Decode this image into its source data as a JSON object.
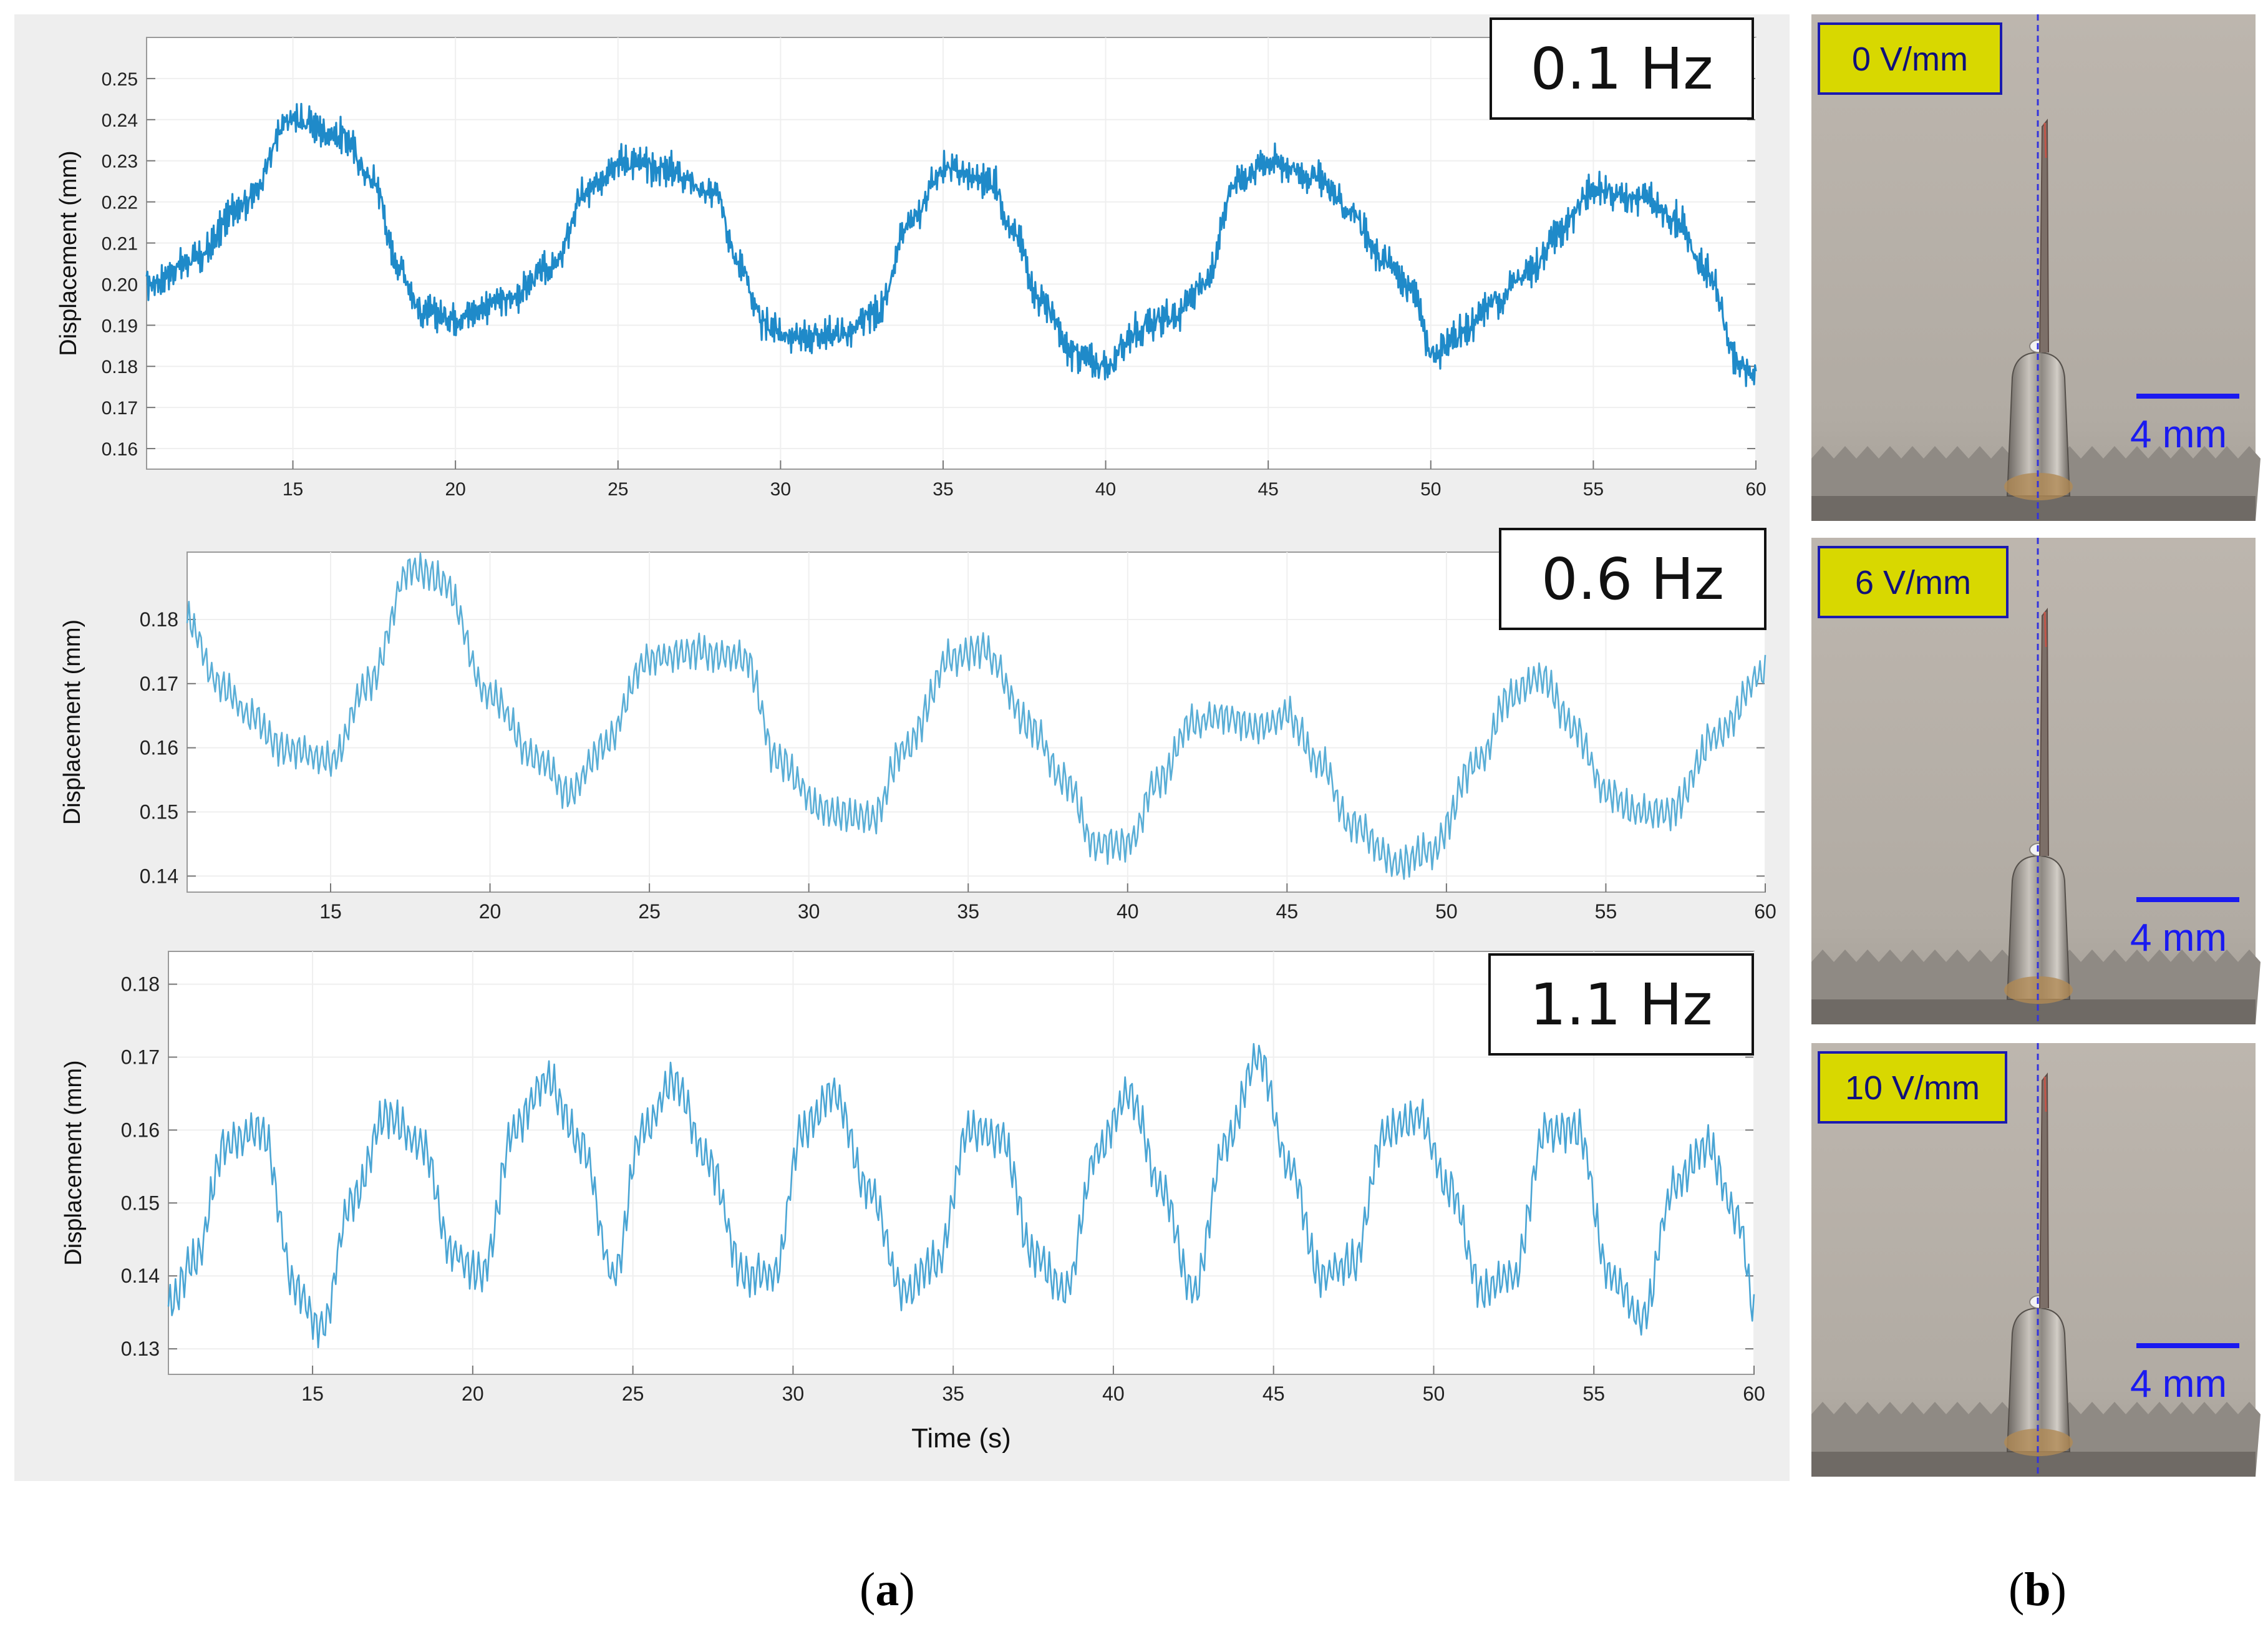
{
  "chart_data": [
    {
      "type": "line",
      "annotation": "0.1 Hz",
      "ylabel": "Displacement (mm)",
      "xlabel": "",
      "xlim": [
        10.5,
        60
      ],
      "ylim": [
        0.155,
        0.26
      ],
      "xticks": [
        15,
        20,
        25,
        30,
        35,
        40,
        45,
        50,
        55,
        60
      ],
      "yticks": [
        0.16,
        0.17,
        0.18,
        0.19,
        0.2,
        0.21,
        0.22,
        0.23,
        0.24,
        0.25
      ],
      "ytick_labels": [
        "0.16",
        "0.17",
        "0.18",
        "0.19",
        "0.20",
        "0.21",
        "0.22",
        "0.23",
        "0.24",
        "0.25"
      ],
      "grid": true,
      "series": [
        {
          "color": "#1f8ac9",
          "x": [
            10.5,
            12,
            13.5,
            15,
            16.5,
            17.5,
            18.2,
            19,
            20,
            21.5,
            23,
            24,
            25,
            26.5,
            28,
            28.7,
            29.5,
            30.5,
            32,
            33,
            34,
            35,
            36.5,
            37.2,
            38,
            39,
            40,
            41,
            42,
            43,
            44,
            45,
            46.5,
            47.5,
            48.5,
            49.5,
            50,
            51,
            52,
            53,
            54,
            55,
            56.5,
            57.5,
            58.5,
            59.5,
            60
          ],
          "y": [
            0.2,
            0.206,
            0.22,
            0.24,
            0.236,
            0.225,
            0.205,
            0.193,
            0.192,
            0.196,
            0.204,
            0.222,
            0.23,
            0.228,
            0.222,
            0.205,
            0.19,
            0.187,
            0.188,
            0.193,
            0.215,
            0.228,
            0.225,
            0.212,
            0.196,
            0.183,
            0.18,
            0.189,
            0.192,
            0.199,
            0.225,
            0.23,
            0.226,
            0.218,
            0.206,
            0.198,
            0.183,
            0.188,
            0.196,
            0.203,
            0.213,
            0.223,
            0.221,
            0.216,
            0.203,
            0.18,
            0.178
          ],
          "noise": 0.004
        }
      ]
    },
    {
      "type": "line",
      "annotation": "0.6 Hz",
      "ylabel": "Displacement (mm)",
      "xlabel": "",
      "xlim": [
        10.5,
        60
      ],
      "ylim": [
        0.1375,
        0.1905
      ],
      "xticks": [
        15,
        20,
        25,
        30,
        35,
        40,
        45,
        50,
        55,
        60
      ],
      "yticks": [
        0.14,
        0.15,
        0.16,
        0.17,
        0.18
      ],
      "ytick_labels": [
        "0.14",
        "0.15",
        "0.16",
        "0.17",
        "0.18"
      ],
      "grid": true,
      "series": [
        {
          "color": "#5aaed6",
          "x": [
            10.5,
            11.5,
            12.5,
            13.5,
            15,
            16.2,
            17.5,
            18.5,
            20,
            21.5,
            22.5,
            23.5,
            25,
            26.5,
            28,
            29,
            30.5,
            32,
            33,
            34.5,
            35.5,
            37,
            38,
            39,
            40,
            41,
            42,
            43,
            44,
            45,
            46,
            47,
            48.5,
            49.5,
            51,
            52,
            53,
            54,
            55,
            56,
            57,
            58.5,
            60
          ],
          "y": [
            0.18,
            0.17,
            0.165,
            0.16,
            0.158,
            0.17,
            0.188,
            0.186,
            0.168,
            0.158,
            0.153,
            0.16,
            0.174,
            0.175,
            0.174,
            0.158,
            0.15,
            0.149,
            0.16,
            0.174,
            0.175,
            0.163,
            0.155,
            0.145,
            0.145,
            0.155,
            0.164,
            0.165,
            0.163,
            0.165,
            0.158,
            0.148,
            0.142,
            0.144,
            0.158,
            0.168,
            0.171,
            0.163,
            0.153,
            0.15,
            0.15,
            0.162,
            0.172
          ],
          "noise": 0.0025
        }
      ]
    },
    {
      "type": "line",
      "annotation": "1.1 Hz",
      "ylabel": "Displacement (mm)",
      "xlabel": "Time (s)",
      "xlim": [
        10.5,
        60
      ],
      "ylim": [
        0.1265,
        0.1845
      ],
      "xticks": [
        15,
        20,
        25,
        30,
        35,
        40,
        45,
        50,
        55,
        60
      ],
      "yticks": [
        0.13,
        0.14,
        0.15,
        0.16,
        0.17,
        0.18
      ],
      "ytick_labels": [
        "0.13",
        "0.14",
        "0.15",
        "0.16",
        "0.17",
        "0.18"
      ],
      "grid": true,
      "series": [
        {
          "color": "#4aa5d4",
          "x": [
            10.5,
            11.3,
            12.3,
            13.4,
            14.5,
            15.3,
            16.2,
            17.3,
            18.4,
            19.4,
            20.3,
            21.3,
            22.3,
            23.4,
            24.4,
            25.3,
            26.3,
            27.3,
            28.5,
            29.4,
            30.3,
            31.3,
            32.3,
            33.5,
            34.5,
            35.5,
            36.5,
            37.5,
            38.5,
            39.5,
            40.5,
            41.5,
            42.5,
            43.5,
            44.5,
            45.5,
            46.5,
            47.5,
            48.5,
            49.5,
            50.5,
            51.5,
            52.5,
            53.5,
            54.5,
            55.5,
            56.5,
            57.5,
            58.5,
            59.5,
            60
          ],
          "y": [
            0.136,
            0.142,
            0.158,
            0.16,
            0.138,
            0.133,
            0.15,
            0.162,
            0.158,
            0.143,
            0.14,
            0.16,
            0.167,
            0.158,
            0.14,
            0.16,
            0.167,
            0.156,
            0.14,
            0.14,
            0.16,
            0.165,
            0.152,
            0.138,
            0.142,
            0.16,
            0.159,
            0.143,
            0.138,
            0.157,
            0.165,
            0.152,
            0.138,
            0.158,
            0.17,
            0.155,
            0.14,
            0.142,
            0.16,
            0.162,
            0.152,
            0.138,
            0.14,
            0.16,
            0.16,
            0.14,
            0.134,
            0.152,
            0.158,
            0.148,
            0.136
          ],
          "noise": 0.0025
        }
      ]
    }
  ],
  "photos": [
    {
      "label": "0 V/mm",
      "scale_bar": "4 mm"
    },
    {
      "label": "6 V/mm",
      "scale_bar": "4 mm"
    },
    {
      "label": "10 V/mm",
      "scale_bar": "4 mm"
    }
  ],
  "captions": {
    "a": "a",
    "b": "b"
  },
  "colors": {
    "panel_bg": "#eeeeee",
    "plot_bg": "#ffffff",
    "photo_bg": "#b8b2aa",
    "label_fill": "#d8d800",
    "label_border": "#1a1ab0",
    "scale_bar": "#1a1af0",
    "center_line": "#3333dd"
  }
}
